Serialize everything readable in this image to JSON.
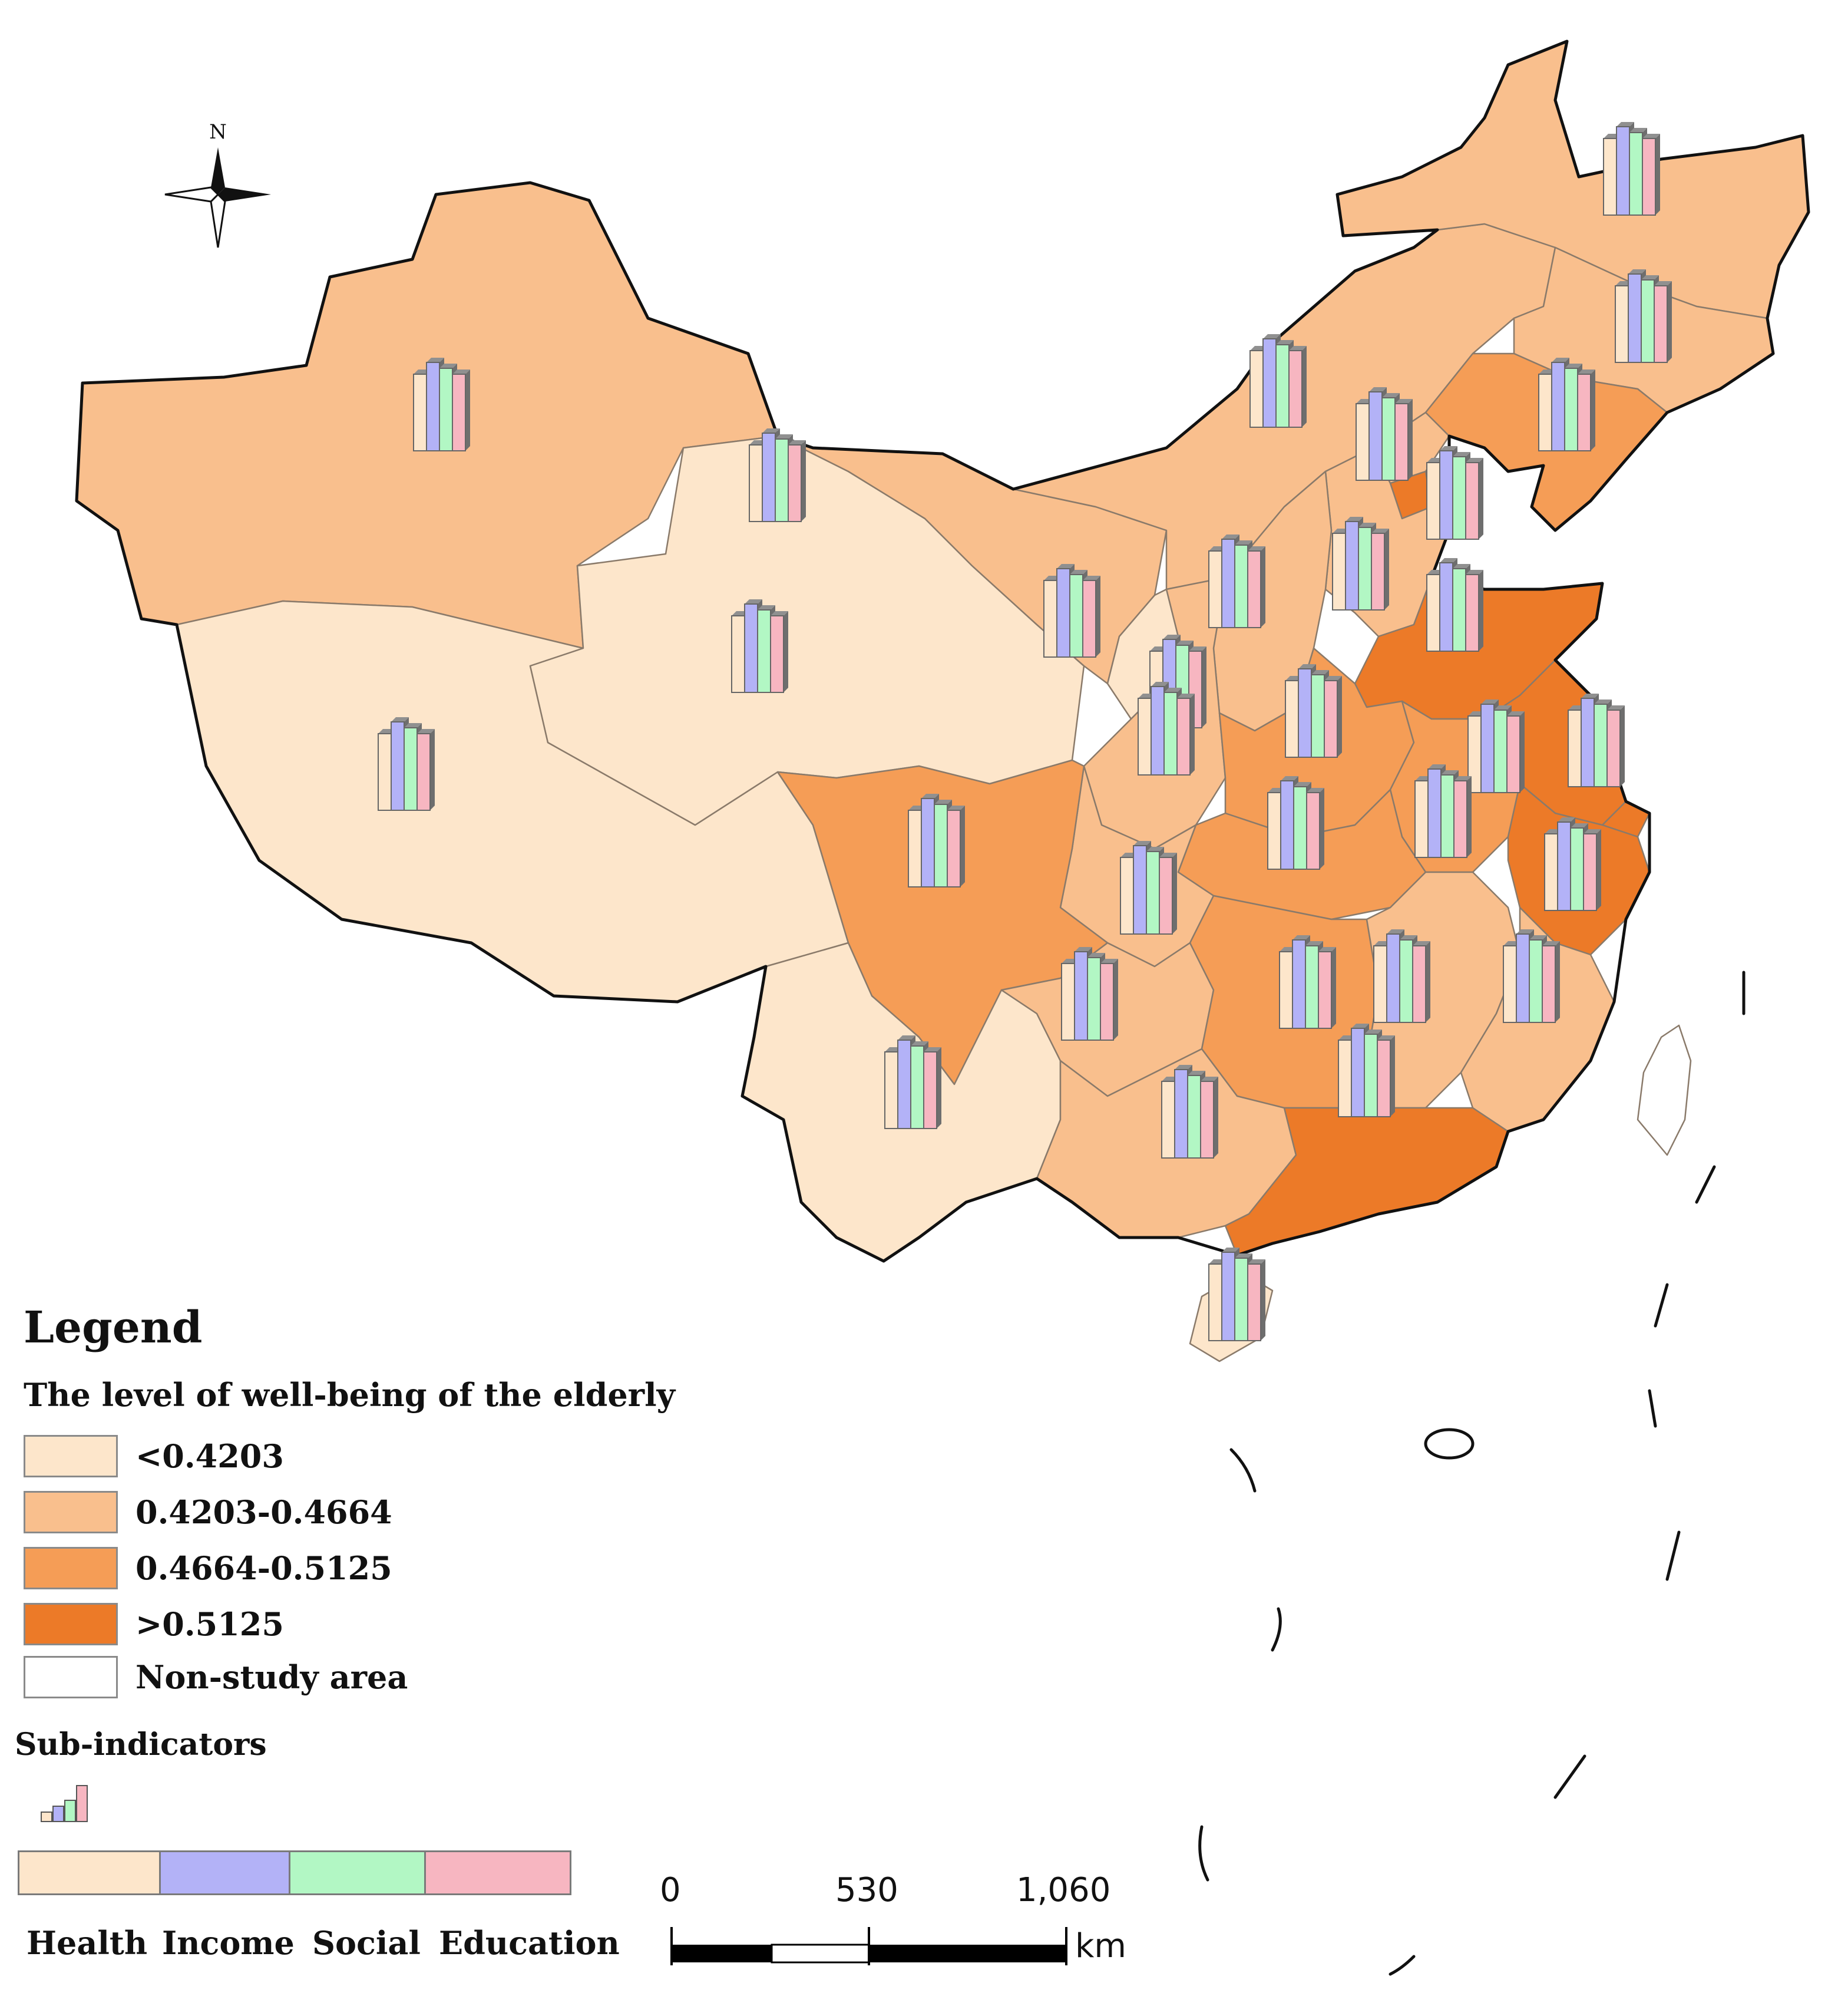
{
  "legend": {
    "title": "Legend",
    "subtitle": "The level of well-being of the elderly",
    "classes": [
      {
        "label": "<0.4203",
        "color": "#fde6cb"
      },
      {
        "label": "0.4203-0.4664",
        "color": "#f9bf8d"
      },
      {
        "label": "0.4664-0.5125",
        "color": "#f59d56"
      },
      {
        "label": ">0.5125",
        "color": "#ec7a28"
      },
      {
        "label": "Non-study area",
        "color": "#ffffff"
      }
    ],
    "sub_indicators_title": "Sub-indicators",
    "sub_indicators": [
      {
        "label": "Health",
        "color": "#fde6cb"
      },
      {
        "label": "Income",
        "color": "#b3b2f7"
      },
      {
        "label": "Social",
        "color": "#b2f7c4"
      },
      {
        "label": "Education",
        "color": "#f7b6c1"
      }
    ]
  },
  "compass": {
    "label": "N"
  },
  "scale_bar": {
    "ticks": [
      "0",
      "530",
      "1,060"
    ],
    "unit": "km"
  }
}
